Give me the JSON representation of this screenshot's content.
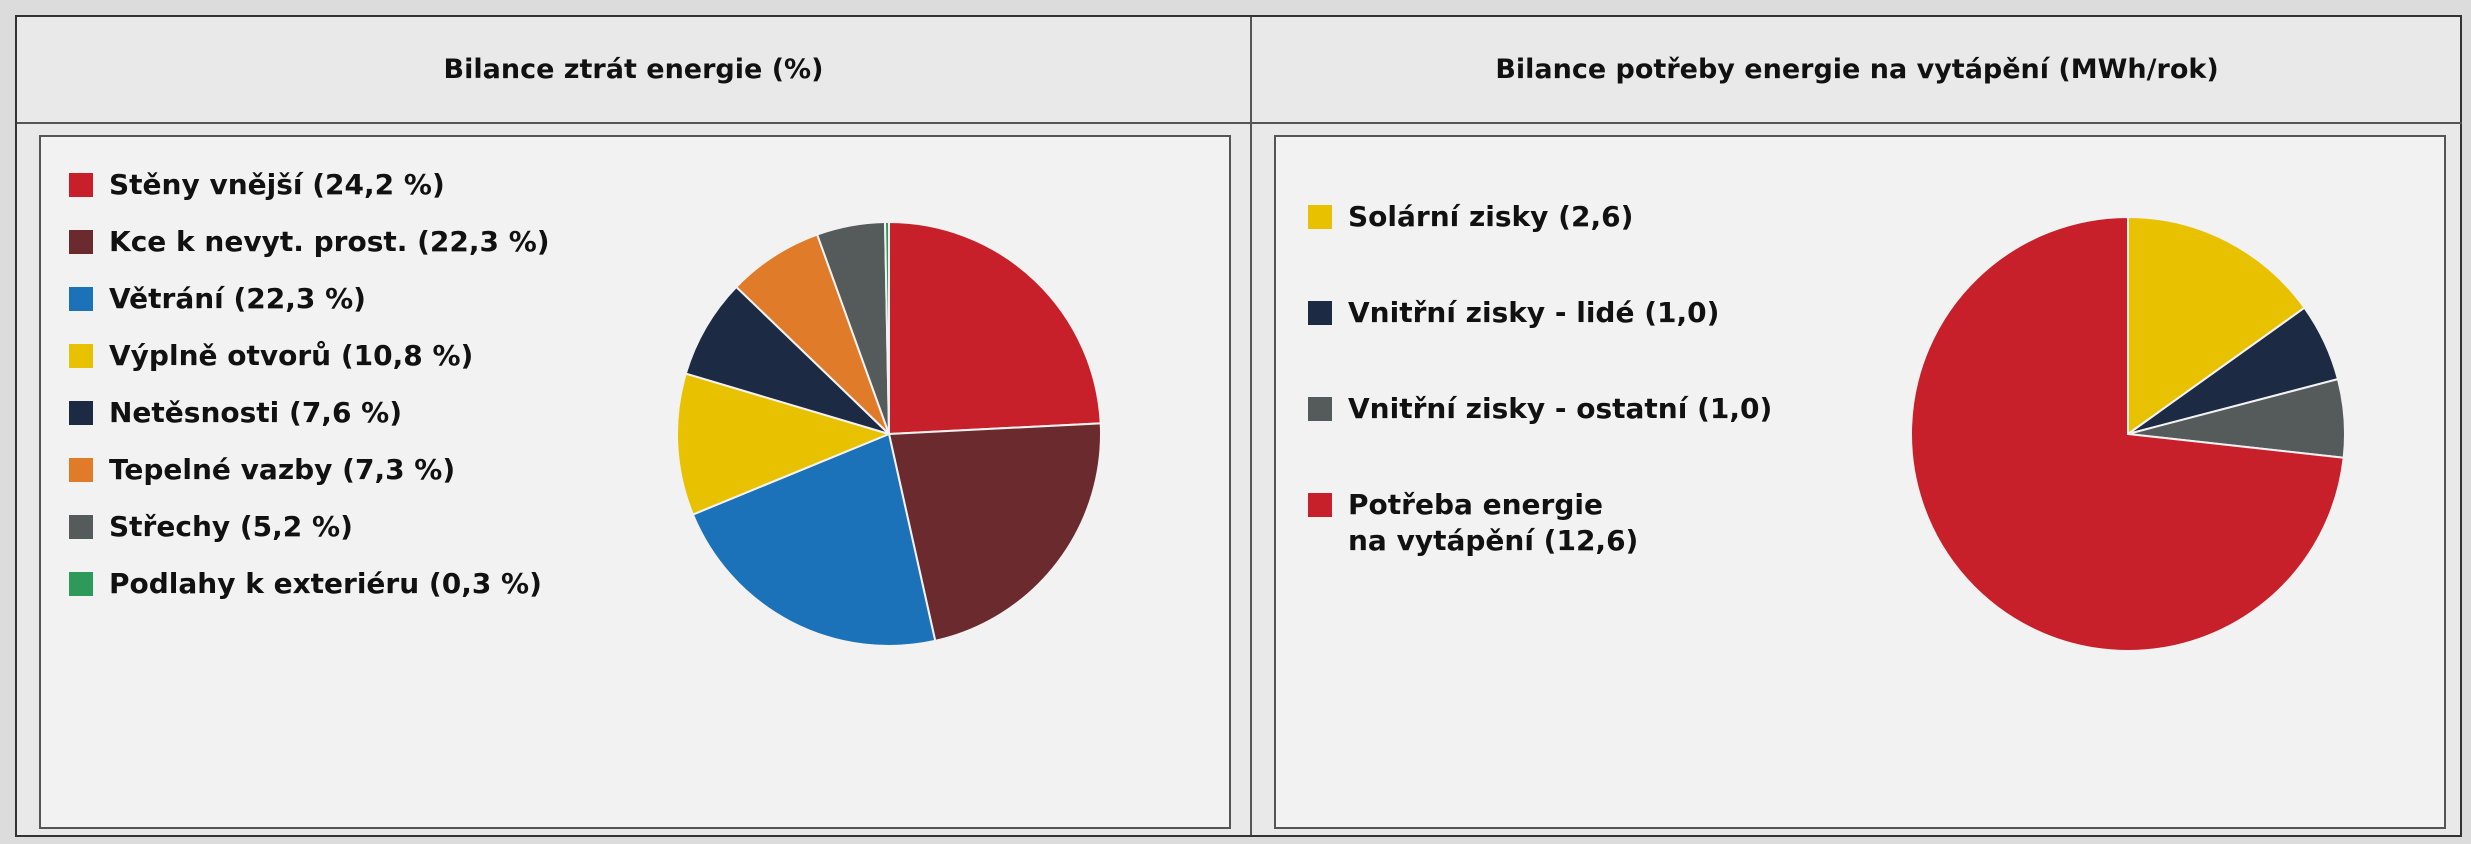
{
  "chart_data": [
    {
      "type": "pie",
      "title": "Bilance ztrát energie (%)",
      "categories": [
        "Stěny vnější (24,2 %)",
        "Kce k nevyt. prost. (22,3 %)",
        "Větrání (22,3 %)",
        "Výplně otvorů (10,8 %)",
        "Netěsnosti (7,6 %)",
        "Tepelné vazby (7,3 %)",
        "Střechy (5,2 %)",
        "Podlahy k exteriéru (0,3 %)"
      ],
      "values": [
        24.2,
        22.3,
        22.3,
        10.8,
        7.6,
        7.3,
        5.2,
        0.3
      ],
      "colors": [
        "#c8202a",
        "#6b2b2e",
        "#1b72b8",
        "#e8c200",
        "#1c2a44",
        "#e07b2a",
        "#555a5a",
        "#2e9a5a"
      ]
    },
    {
      "type": "pie",
      "title": "Bilance potřeby energie na vytápění (MWh/rok)",
      "categories": [
        "Solární zisky (2,6)",
        "Vnitřní zisky - lidé (1,0)",
        "Vnitřní zisky - ostatní (1,0)",
        "Potřeba energie\nna vytápění (12,6)"
      ],
      "values": [
        2.6,
        1.0,
        1.0,
        12.6
      ],
      "colors": [
        "#e8c200",
        "#1c2a44",
        "#555a5a",
        "#c8202a"
      ]
    }
  ]
}
